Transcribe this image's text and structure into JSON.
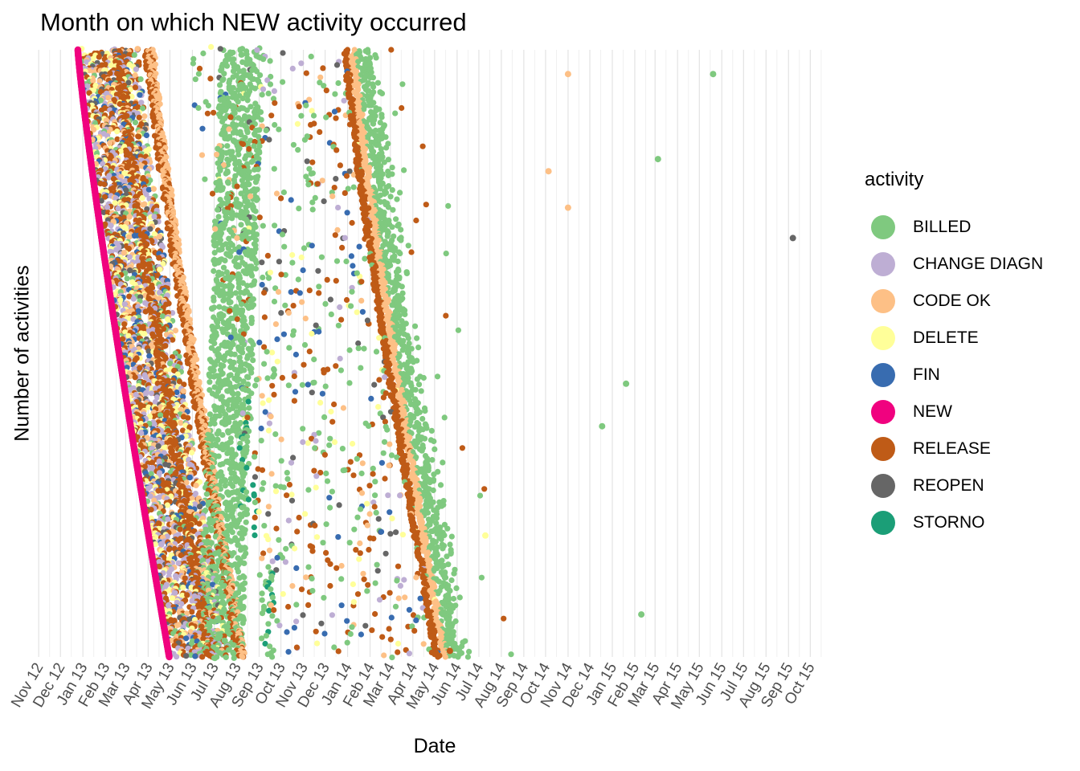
{
  "chart_data": {
    "type": "scatter",
    "title": "Month on which NEW activity occurred",
    "xlabel": "Date",
    "ylabel": "Number of activities",
    "x_ticks": [
      "Nov 12",
      "Dec 12",
      "Jan 13",
      "Feb 13",
      "Mar 13",
      "Apr 13",
      "May 13",
      "Jun 13",
      "Jul 13",
      "Aug 13",
      "Sep 13",
      "Oct 13",
      "Nov 13",
      "Dec 13",
      "Jan 14",
      "Feb 14",
      "Mar 14",
      "Apr 14",
      "May 14",
      "Jun 14",
      "Jul 14",
      "Aug 14",
      "Sep 14",
      "Oct 14",
      "Nov 14",
      "Dec 14",
      "Jan 15",
      "Feb 15",
      "Mar 15",
      "Apr 15",
      "May 15",
      "Jun 15",
      "Jul 15",
      "Aug 15",
      "Sep 15",
      "Oct 15"
    ],
    "xlim": [
      "2012-10-23",
      "2015-10-25"
    ],
    "y_axis_labels_shown": false,
    "grid": {
      "vertical_minor": true,
      "horizontal": false
    },
    "legend": {
      "title": "activity",
      "position": "right",
      "entries": [
        {
          "name": "BILLED",
          "color": "#7FC97F"
        },
        {
          "name": "CHANGE DIAGN",
          "color": "#BEAED4"
        },
        {
          "name": "CODE OK",
          "color": "#FDC086"
        },
        {
          "name": "DELETE",
          "color": "#FFFF99"
        },
        {
          "name": "FIN",
          "color": "#386CB0"
        },
        {
          "name": "NEW",
          "color": "#F0027F"
        },
        {
          "name": "RELEASE",
          "color": "#BF5B17"
        },
        {
          "name": "REOPEN",
          "color": "#666666"
        },
        {
          "name": "STORNO",
          "color": "#1B9E77"
        }
      ]
    },
    "points_summary": "Thousands of cases; each case is a row on the y axis (cases ordered by date of the NEW activity, earliest at top). Every activity of the case is plotted at its date.",
    "new_activity_date_range": [
      "2012-12-25",
      "2013-04-30"
    ],
    "outliers": [
      {
        "activity": "BILLED",
        "date": "2015-05-20",
        "row_fraction": 0.04
      },
      {
        "activity": "BILLED",
        "date": "2015-03-05",
        "row_fraction": 0.18
      },
      {
        "activity": "REOPEN",
        "date": "2015-09-07",
        "row_fraction": 0.31
      },
      {
        "activity": "BILLED",
        "date": "2015-01-20",
        "row_fraction": 0.55
      },
      {
        "activity": "CODE OK",
        "date": "2014-11-01",
        "row_fraction": 0.04
      },
      {
        "activity": "CODE OK",
        "date": "2014-10-05",
        "row_fraction": 0.2
      },
      {
        "activity": "CODE OK",
        "date": "2014-11-01",
        "row_fraction": 0.26
      },
      {
        "activity": "BILLED",
        "date": "2014-12-18",
        "row_fraction": 0.62
      },
      {
        "activity": "DELETE",
        "date": "2014-07-10",
        "row_fraction": 0.8
      },
      {
        "activity": "BILLED",
        "date": "2015-02-10",
        "row_fraction": 0.93
      },
      {
        "activity": "RELEASE",
        "date": "2014-05-22",
        "row_fraction": 0.99
      }
    ]
  }
}
